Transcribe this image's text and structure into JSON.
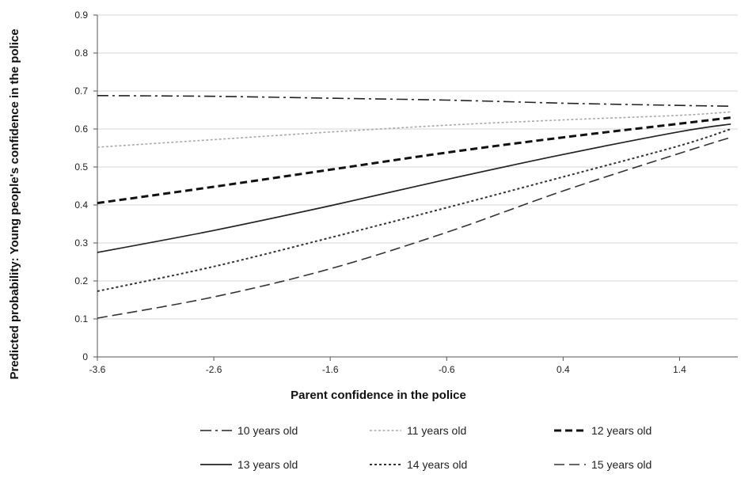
{
  "chart_data": {
    "type": "line",
    "xlabel": "Parent confidence in the police",
    "ylabel": "Predicted probability: Young people's confidence in the police",
    "xlim": [
      -3.6,
      1.9
    ],
    "ylim": [
      0,
      0.9
    ],
    "x_ticks": [
      -3.6,
      -2.6,
      -1.6,
      -0.6,
      0.4,
      1.4
    ],
    "x_tick_labels": [
      "-3.6",
      "-2.6",
      "-1.6",
      "-0.6",
      "0.4",
      "1.4"
    ],
    "y_ticks": [
      0,
      0.1,
      0.2,
      0.3,
      0.4,
      0.5,
      0.6,
      0.7,
      0.8,
      0.9
    ],
    "y_tick_labels": [
      "0",
      "0.1",
      "0.2",
      "0.3",
      "0.4",
      "0.5",
      "0.6",
      "0.7",
      "0.8",
      "0.9"
    ],
    "grid": "horizontal",
    "legend": "bottom",
    "x": [
      -3.6,
      -2.6,
      -1.6,
      -0.6,
      0.4,
      1.4,
      1.9
    ],
    "series": [
      {
        "name": "10 years old",
        "style": "dash-dot",
        "color": "#222222",
        "values": [
          0.688,
          0.686,
          0.681,
          0.676,
          0.668,
          0.662,
          0.66
        ]
      },
      {
        "name": "11 years old",
        "style": "dotted",
        "color": "#aaaaaa",
        "values": [
          0.552,
          0.572,
          0.592,
          0.61,
          0.624,
          0.636,
          0.645
        ]
      },
      {
        "name": "12 years old",
        "style": "bold-dash",
        "color": "#111111",
        "values": [
          0.405,
          0.448,
          0.493,
          0.538,
          0.578,
          0.614,
          0.63
        ]
      },
      {
        "name": "13 years old",
        "style": "solid",
        "color": "#222222",
        "values": [
          0.275,
          0.333,
          0.398,
          0.467,
          0.533,
          0.593,
          0.613
        ]
      },
      {
        "name": "14 years old",
        "style": "fine-dash",
        "color": "#333333",
        "values": [
          0.173,
          0.238,
          0.314,
          0.393,
          0.474,
          0.556,
          0.6
        ]
      },
      {
        "name": "15 years old",
        "style": "long-dash",
        "color": "#333333",
        "values": [
          0.102,
          0.158,
          0.232,
          0.328,
          0.437,
          0.536,
          0.578
        ]
      }
    ]
  }
}
